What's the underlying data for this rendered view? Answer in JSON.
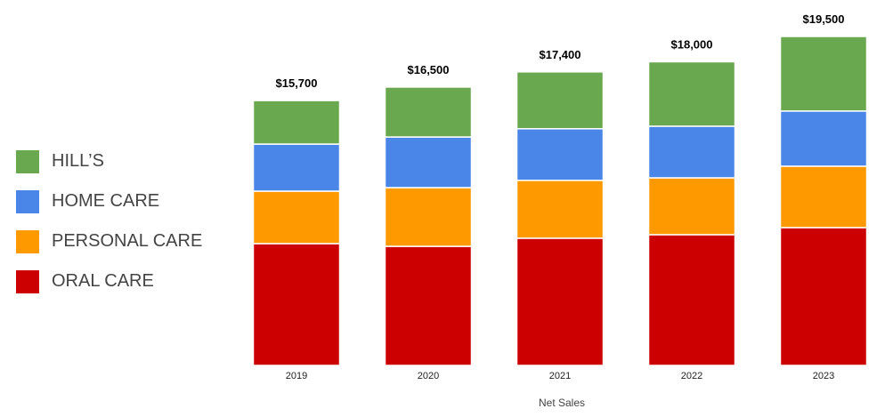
{
  "chart_data": {
    "type": "bar",
    "stacked": true,
    "title": "",
    "xlabel": "Net Sales",
    "ylabel": "",
    "ylim": [
      0,
      19500
    ],
    "grid": false,
    "legend_position": "left",
    "categories": [
      "2019",
      "2020",
      "2021",
      "2022",
      "2023"
    ],
    "totals": [
      "$15,700",
      "$16,500",
      "$17,400",
      "$18,000",
      "$19,500"
    ],
    "total_values": [
      15700,
      16500,
      17400,
      18000,
      19500
    ],
    "series": [
      {
        "name": "ORAL CARE",
        "color": "#cc0000",
        "values": [
          7220,
          7060,
          7540,
          7750,
          8170
        ]
      },
      {
        "name": "PERSONAL CARE",
        "color": "#ff9900",
        "values": [
          3110,
          3480,
          3430,
          3370,
          3640
        ]
      },
      {
        "name": "HOME CARE",
        "color": "#4a86e8",
        "values": [
          2790,
          3000,
          3060,
          3060,
          3270
        ]
      },
      {
        "name": "HILL’S",
        "color": "#6aa84f",
        "values": [
          2580,
          2960,
          3370,
          3820,
          4420
        ]
      }
    ]
  }
}
